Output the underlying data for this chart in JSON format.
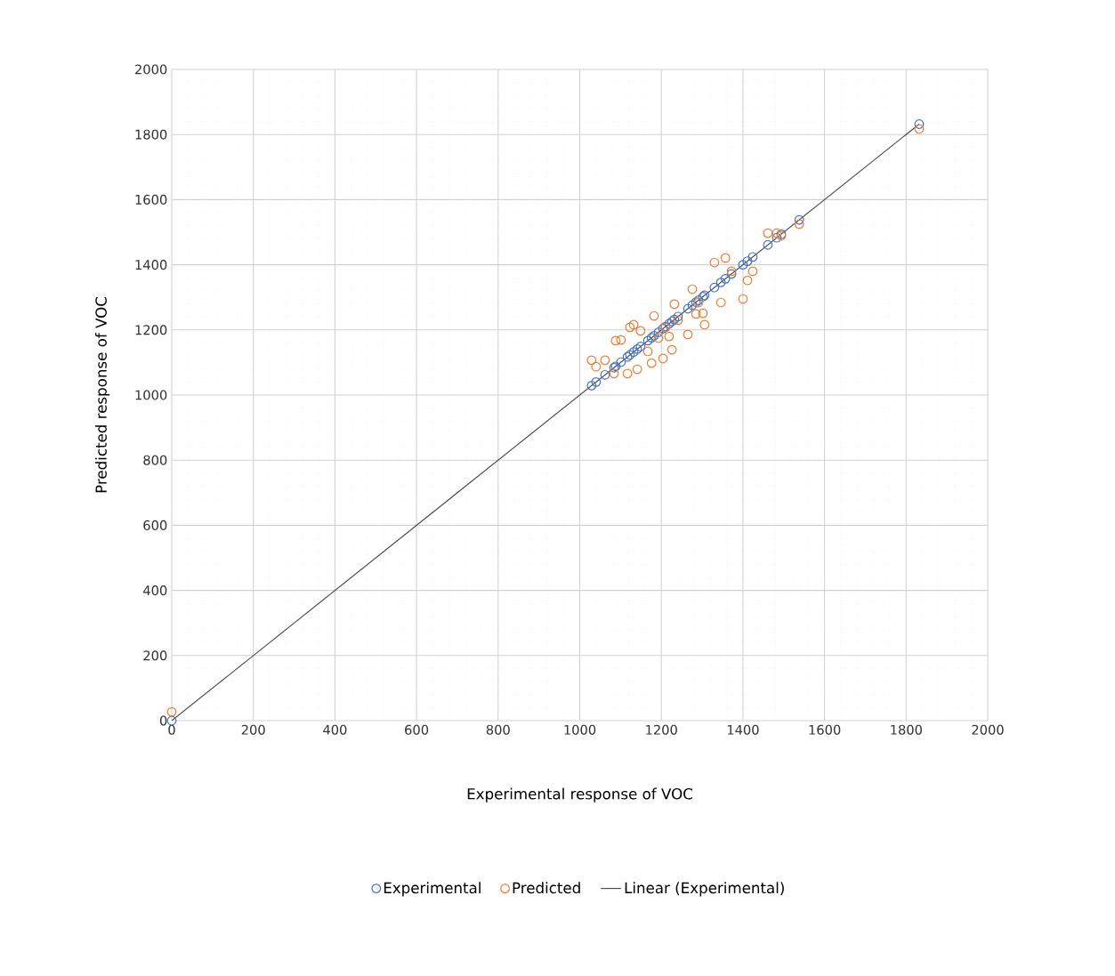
{
  "chart_data": {
    "type": "scatter",
    "xlabel": "Experimental response of VOC",
    "ylabel": "Predicted response of VOC",
    "xlim": [
      0,
      2000
    ],
    "ylim": [
      0,
      2000
    ],
    "xticks": [
      0,
      200,
      400,
      600,
      800,
      1000,
      1200,
      1400,
      1600,
      1800,
      2000
    ],
    "yticks": [
      0,
      200,
      400,
      600,
      800,
      1000,
      1200,
      1400,
      1600,
      1800,
      2000
    ],
    "grid": true,
    "legend": "bottom",
    "marker": "circle",
    "series": [
      {
        "name": "Experimental",
        "color": "#4472c4",
        "x": [
          0,
          1029,
          1040,
          1062,
          1084,
          1088,
          1101,
          1117,
          1123,
          1132,
          1141,
          1149,
          1167,
          1176,
          1182,
          1193,
          1204,
          1210,
          1219,
          1226,
          1232,
          1241,
          1265,
          1276,
          1285,
          1291,
          1302,
          1306,
          1330,
          1346,
          1357,
          1372,
          1400,
          1411,
          1424,
          1461,
          1483,
          1494,
          1538,
          1832
        ],
        "values": [
          0,
          1029,
          1040,
          1062,
          1084,
          1088,
          1101,
          1117,
          1123,
          1132,
          1141,
          1149,
          1167,
          1176,
          1182,
          1193,
          1204,
          1210,
          1219,
          1226,
          1232,
          1241,
          1265,
          1276,
          1285,
          1291,
          1302,
          1306,
          1330,
          1346,
          1357,
          1372,
          1400,
          1411,
          1424,
          1461,
          1483,
          1494,
          1538,
          1832
        ]
      },
      {
        "name": "Predicted",
        "color": "#ed7d31",
        "x": [
          0,
          1029,
          1040,
          1062,
          1084,
          1088,
          1101,
          1117,
          1123,
          1132,
          1141,
          1149,
          1167,
          1176,
          1182,
          1193,
          1204,
          1210,
          1219,
          1226,
          1232,
          1241,
          1265,
          1276,
          1285,
          1291,
          1302,
          1306,
          1330,
          1346,
          1357,
          1372,
          1400,
          1411,
          1424,
          1461,
          1483,
          1494,
          1538,
          1832
        ],
        "values": [
          27,
          1107,
          1087,
          1107,
          1066,
          1167,
          1169,
          1066,
          1208,
          1216,
          1079,
          1197,
          1134,
          1098,
          1243,
          1175,
          1112,
          1208,
          1180,
          1139,
          1279,
          1230,
          1186,
          1325,
          1249,
          1284,
          1251,
          1216,
          1407,
          1284,
          1421,
          1380,
          1295,
          1352,
          1380,
          1497,
          1497,
          1489,
          1525,
          1817
        ]
      },
      {
        "name": "Linear (Experimental)",
        "type": "line",
        "marker": "none",
        "color": "#404040",
        "x": [
          0,
          1832
        ],
        "values": [
          0,
          1832
        ]
      }
    ]
  }
}
